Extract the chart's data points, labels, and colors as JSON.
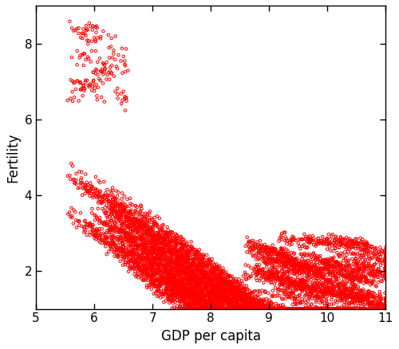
{
  "xlabel": "GDP per capita",
  "ylabel": "Fertility",
  "xlim": [
    5,
    11
  ],
  "ylim": [
    1,
    9
  ],
  "xticks": [
    5,
    6,
    7,
    8,
    9,
    10,
    11
  ],
  "yticks": [
    2,
    4,
    6,
    8
  ],
  "marker_color": "#FF0000",
  "marker": "o",
  "marker_size": 2.5,
  "marker_linewidth": 0.7,
  "background_color": "#FFFFFF",
  "n_countries": 160,
  "seed": 7
}
